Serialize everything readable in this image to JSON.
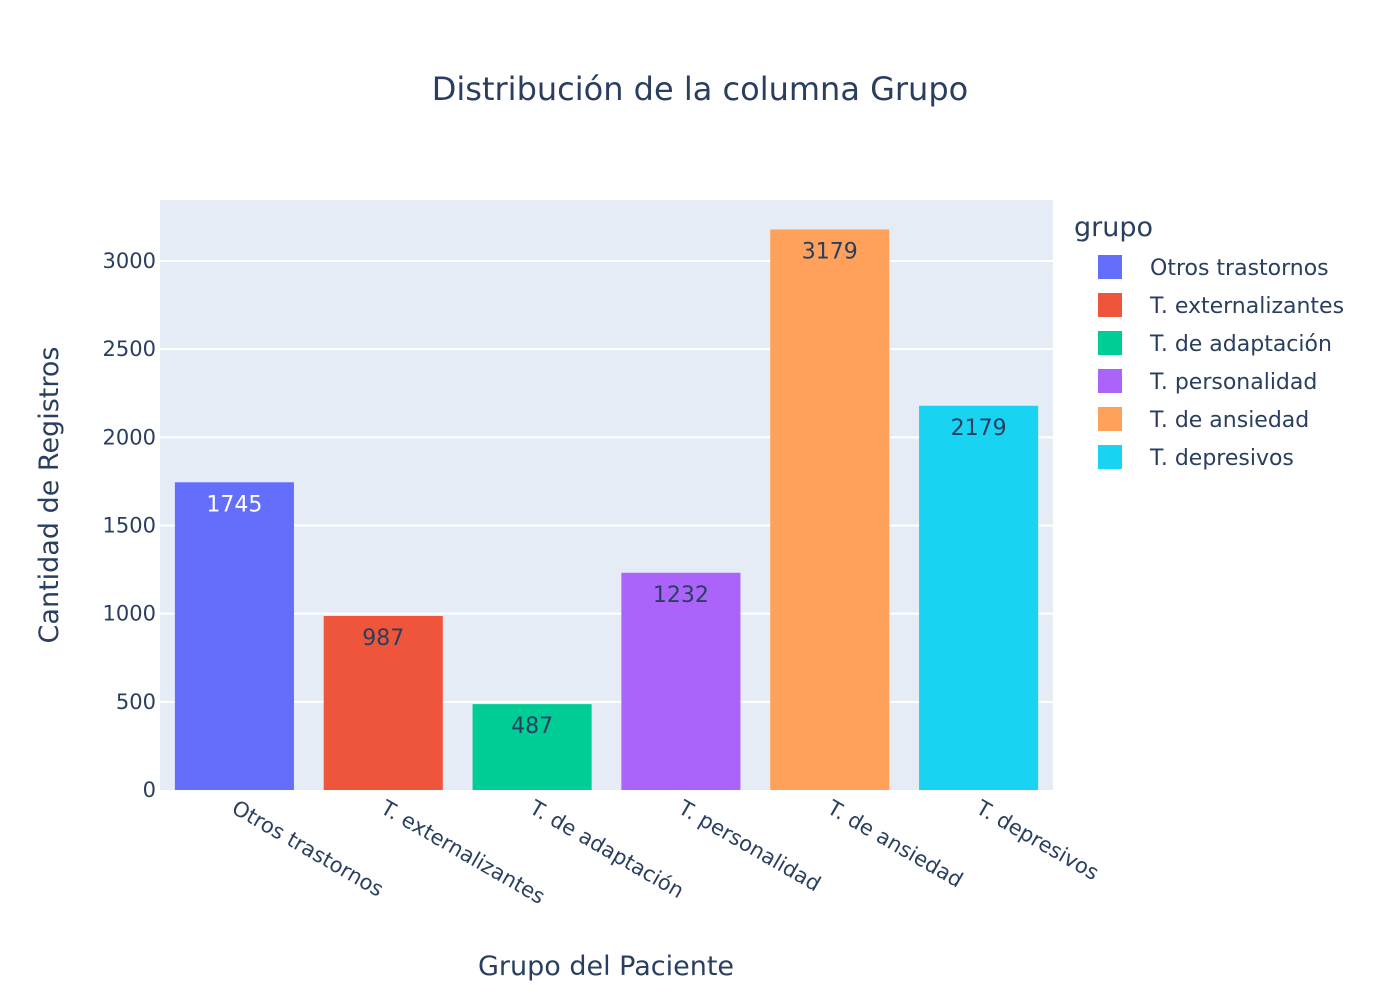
{
  "chart_data": {
    "type": "bar",
    "title": "Distribución de la columna Grupo",
    "xlabel": "Grupo del Paciente",
    "ylabel": "Cantidad de Registros",
    "categories": [
      "Otros trastornos",
      "T. externalizantes",
      "T. de adaptación",
      "T. personalidad",
      "T. de ansiedad",
      "T. depresivos"
    ],
    "values": [
      1745,
      987,
      487,
      1232,
      3179,
      2179
    ],
    "colors": [
      "#636efa",
      "#EF553B",
      "#00cc96",
      "#ab63fa",
      "#FFA15A",
      "#19d3f3"
    ],
    "label_colors": [
      "#ffffff",
      "#2a3f5f",
      "#2a3f5f",
      "#2a3f5f",
      "#2a3f5f",
      "#2a3f5f"
    ],
    "ylim": [
      0,
      3346
    ],
    "yticks": [
      0,
      500,
      1000,
      1500,
      2000,
      2500,
      3000
    ],
    "grid": true,
    "plot_background": "#E5ECF6",
    "legend": {
      "title": "grupo",
      "position": "right",
      "items": [
        "Otros trastornos",
        "T. externalizantes",
        "T. de adaptación",
        "T. personalidad",
        "T. de ansiedad",
        "T. depresivos"
      ]
    }
  }
}
